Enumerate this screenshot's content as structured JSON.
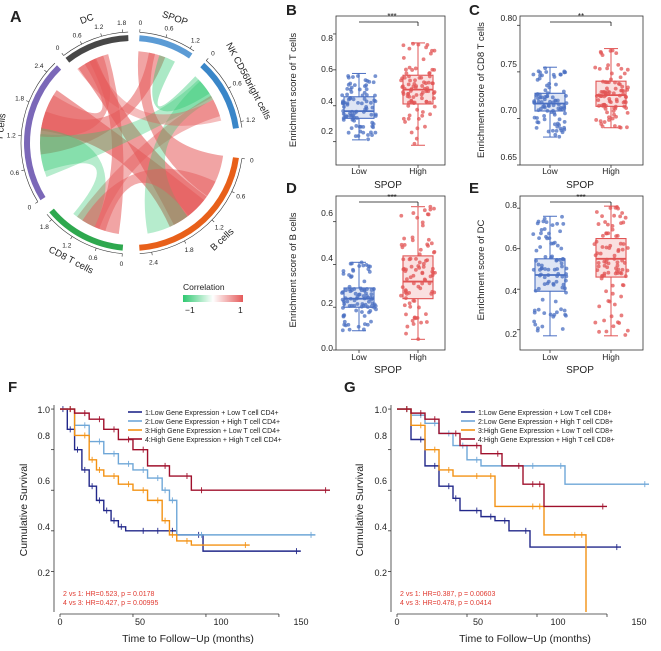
{
  "colors": {
    "low": "#4a6fc2",
    "high": "#e15454",
    "km": [
      "#22288a",
      "#6fa7d8",
      "#f39214",
      "#a0102c"
    ],
    "pos": "#e55a5a",
    "neg": "#2ec870"
  },
  "panels": {
    "A": {
      "letter": "A",
      "legend": {
        "title": "Correlation",
        "min": "−1",
        "max": "1"
      },
      "sectors": [
        {
          "name": "NK CD56bright cells",
          "color": "#3a86c8",
          "ticks": [
            "0",
            "0.6",
            "1.2"
          ]
        },
        {
          "name": "B cells",
          "color": "#e8601a",
          "ticks": [
            "0",
            "0.6",
            "1.2",
            "1.8",
            "2.4"
          ]
        },
        {
          "name": "CD8 T cells",
          "color": "#2ea84e",
          "ticks": [
            "0",
            "0.6",
            "1.2",
            "1.8"
          ]
        },
        {
          "name": "T cells",
          "color": "#7b68b8",
          "ticks": [
            "0",
            "0.6",
            "1.2",
            "1.8",
            "2.4"
          ]
        },
        {
          "name": "DC",
          "color": "#474747",
          "ticks": [
            "0",
            "0.6",
            "1.2",
            "1.8"
          ]
        },
        {
          "name": "SPOP",
          "color": "#5b9bd5",
          "ticks": [
            "0",
            "0.6",
            "1.2"
          ]
        }
      ]
    },
    "B": {
      "letter": "B",
      "sig": "***",
      "ticks": [
        "0.2",
        "0.4",
        "0.6",
        "0.8"
      ]
    },
    "C": {
      "letter": "C",
      "sig": "**",
      "ticks": [
        "0.65",
        "0.70",
        "0.75",
        "0.80"
      ]
    },
    "D": {
      "letter": "D",
      "sig": "***",
      "ticks": [
        "0.0",
        "0.2",
        "0.4",
        "0.6"
      ]
    },
    "E": {
      "letter": "E",
      "sig": "***",
      "ticks": [
        "0.2",
        "0.4",
        "0.6",
        "0.8"
      ]
    },
    "F": {
      "letter": "F",
      "legend": [
        "1:Low Gene Expression + Low T cell CD4+",
        "2:Low Gene Expression + High T cell CD4+",
        "3:High Gene Expression + Low T cell CD4+",
        "4:High Gene Expression + High T cell CD4+"
      ],
      "stats": [
        "2 vs 1: HR=0.523, p = 0.0178",
        "4 vs 3: HR=0.427, p = 0.00995"
      ],
      "xticks": [
        "0",
        "50",
        "100",
        "150"
      ],
      "yticks": [
        "0.2",
        "0.4",
        "0.6",
        "0.8",
        "1.0"
      ]
    },
    "G": {
      "letter": "G",
      "legend": [
        "1:Low Gene Expression + Low T cell CD8+",
        "2:Low Gene Expression + High T cell CD8+",
        "3:High Gene Expression + Low T cell CD8+",
        "4:High Gene Expression + High T cell CD8+"
      ],
      "stats": [
        "2 vs 1: HR=0.387, p = 0.00603",
        "4 vs 3: HR=0.478, p = 0.0414"
      ],
      "xticks": [
        "0",
        "50",
        "100",
        "150"
      ],
      "yticks": [
        "0.2",
        "0.4",
        "0.6",
        "0.8",
        "1.0"
      ]
    }
  },
  "chart_data": [
    {
      "panel": "B",
      "type": "box",
      "xlabel": "SPOP",
      "ylabel": "Enrichment score of T cells",
      "categories": [
        "Low",
        "High"
      ],
      "ylim": [
        0.07,
        0.9
      ],
      "significance": "***",
      "boxes": [
        {
          "name": "Low",
          "q1": 0.33,
          "median": 0.37,
          "q3": 0.45,
          "whisker_low": 0.21,
          "whisker_high": 0.58,
          "n_points": 90
        },
        {
          "name": "High",
          "q1": 0.41,
          "median": 0.49,
          "q3": 0.57,
          "whisker_low": 0.18,
          "whisker_high": 0.75,
          "n_points": 90
        }
      ]
    },
    {
      "panel": "C",
      "type": "box",
      "xlabel": "SPOP",
      "ylabel": "Enrichment score of CD8 T cells",
      "categories": [
        "Low",
        "High"
      ],
      "ylim": [
        0.65,
        0.81
      ],
      "significance": "**",
      "boxes": [
        {
          "name": "Low",
          "q1": 0.708,
          "median": 0.716,
          "q3": 0.727,
          "whisker_low": 0.68,
          "whisker_high": 0.755,
          "n_points": 90
        },
        {
          "name": "High",
          "q1": 0.713,
          "median": 0.725,
          "q3": 0.74,
          "whisker_low": 0.69,
          "whisker_high": 0.775,
          "n_points": 90
        }
      ]
    },
    {
      "panel": "D",
      "type": "box",
      "xlabel": "SPOP",
      "ylabel": "Enrichment score of B cells",
      "categories": [
        "Low",
        "High"
      ],
      "ylim": [
        0.0,
        0.72
      ],
      "significance": "***",
      "boxes": [
        {
          "name": "Low",
          "q1": 0.2,
          "median": 0.24,
          "q3": 0.29,
          "whisker_low": 0.09,
          "whisker_high": 0.41,
          "n_points": 90
        },
        {
          "name": "High",
          "q1": 0.24,
          "median": 0.32,
          "q3": 0.44,
          "whisker_low": 0.05,
          "whisker_high": 0.67,
          "n_points": 90
        }
      ]
    },
    {
      "panel": "E",
      "type": "box",
      "xlabel": "SPOP",
      "ylabel": "Enrichment score of DC",
      "categories": [
        "Low",
        "High"
      ],
      "ylim": [
        0.1,
        0.86
      ],
      "significance": "***",
      "boxes": [
        {
          "name": "Low",
          "q1": 0.39,
          "median": 0.47,
          "q3": 0.55,
          "whisker_low": 0.17,
          "whisker_high": 0.76,
          "n_points": 90
        },
        {
          "name": "High",
          "q1": 0.46,
          "median": 0.55,
          "q3": 0.65,
          "whisker_low": 0.17,
          "whisker_high": 0.81,
          "n_points": 90
        }
      ]
    },
    {
      "panel": "F",
      "type": "line",
      "title": "",
      "xlabel": "Time to Follow−Up (months)",
      "ylabel": "Cumulative Survival",
      "xlim": [
        0,
        185
      ],
      "ylim": [
        0.0,
        1.02
      ],
      "series": [
        {
          "name": "1:Low Gene Expression + Low T cell CD4+",
          "x": [
            0,
            5,
            10,
            15,
            20,
            25,
            30,
            35,
            40,
            45,
            60,
            70,
            80,
            98,
            165
          ],
          "y": [
            1.0,
            0.9,
            0.8,
            0.7,
            0.62,
            0.55,
            0.5,
            0.45,
            0.42,
            0.4,
            0.4,
            0.4,
            0.38,
            0.3,
            0.3
          ]
        },
        {
          "name": "2:Low Gene Expression + High T cell CD4+",
          "x": [
            0,
            10,
            20,
            30,
            40,
            50,
            60,
            70,
            75,
            80,
            100,
            175
          ],
          "y": [
            1.0,
            0.92,
            0.84,
            0.78,
            0.73,
            0.7,
            0.66,
            0.6,
            0.55,
            0.38,
            0.38,
            0.38
          ]
        },
        {
          "name": "3:High Gene Expression + Low T cell CD4+",
          "x": [
            0,
            10,
            20,
            25,
            30,
            40,
            50,
            60,
            70,
            75,
            80,
            90,
            130
          ],
          "y": [
            1.0,
            0.87,
            0.75,
            0.7,
            0.67,
            0.63,
            0.6,
            0.55,
            0.45,
            0.38,
            0.35,
            0.33,
            0.33
          ]
        },
        {
          "name": "4:High Gene Expression + High T cell CD4+",
          "x": [
            0,
            10,
            20,
            30,
            40,
            50,
            60,
            75,
            90,
            100,
            185
          ],
          "y": [
            1.0,
            0.98,
            0.95,
            0.9,
            0.85,
            0.8,
            0.72,
            0.67,
            0.6,
            0.6,
            0.6
          ]
        }
      ]
    },
    {
      "panel": "G",
      "type": "line",
      "title": "",
      "xlabel": "Time to Follow−Up (months)",
      "ylabel": "Cumulative Survival",
      "xlim": [
        0,
        185
      ],
      "ylim": [
        0.0,
        1.02
      ],
      "series": [
        {
          "name": "1:Low Gene Expression + Low T cell CD8+",
          "x": [
            0,
            10,
            20,
            30,
            40,
            45,
            60,
            70,
            80,
            95,
            160
          ],
          "y": [
            1.0,
            0.85,
            0.72,
            0.62,
            0.56,
            0.5,
            0.47,
            0.45,
            0.4,
            0.32,
            0.32
          ]
        },
        {
          "name": "2:Low Gene Expression + High T cell CD8+",
          "x": [
            0,
            10,
            20,
            30,
            40,
            50,
            60,
            100,
            120,
            180
          ],
          "y": [
            1.0,
            0.97,
            0.93,
            0.88,
            0.82,
            0.75,
            0.72,
            0.72,
            0.63,
            0.63
          ]
        },
        {
          "name": "3:High Gene Expression + Low T cell CD8+",
          "x": [
            0,
            10,
            20,
            30,
            40,
            60,
            70,
            100,
            105,
            130,
            135
          ],
          "y": [
            1.0,
            0.92,
            0.8,
            0.7,
            0.67,
            0.67,
            0.52,
            0.52,
            0.38,
            0.38,
            0.0
          ]
        },
        {
          "name": "4:High Gene Expression + High T cell CD8+",
          "x": [
            0,
            10,
            20,
            30,
            45,
            60,
            75,
            90,
            100,
            105,
            150
          ],
          "y": [
            1.0,
            0.98,
            0.95,
            0.88,
            0.82,
            0.78,
            0.72,
            0.63,
            0.63,
            0.52,
            0.52
          ]
        }
      ]
    }
  ]
}
